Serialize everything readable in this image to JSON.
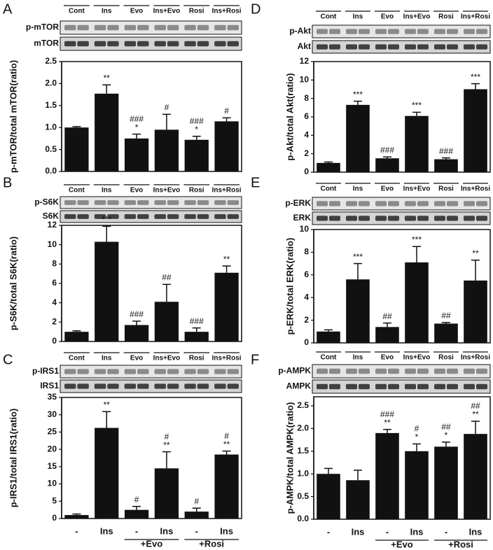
{
  "chart_data": [
    {
      "type": "bar",
      "panel": "A",
      "lanes": [
        "Cont",
        "Ins",
        "Evo",
        "Ins+Evo",
        "Rosi",
        "Ins+Rosi"
      ],
      "blots": [
        "p-mTOR",
        "mTOR"
      ],
      "ylabel": "p-mTOR/total mTOR(ratio)",
      "ylim": [
        0,
        2.5
      ],
      "yticks": [
        {
          "value": 0,
          "label": "0.0"
        },
        0.5,
        {
          "value": 1,
          "label": "1.0"
        },
        1.5,
        {
          "value": 2,
          "label": "2.0"
        },
        2.5
      ],
      "values": [
        1.0,
        1.77,
        0.75,
        0.95,
        0.72,
        1.14
      ],
      "errors": [
        0.02,
        0.2,
        0.1,
        0.35,
        0.08,
        0.08
      ],
      "annotations": [
        [],
        [
          "**"
        ],
        [
          "###",
          "*"
        ],
        [
          "#"
        ],
        [
          "###",
          "*"
        ],
        [
          "#"
        ]
      ],
      "color": "#111111"
    },
    {
      "type": "bar",
      "panel": "B",
      "lanes": [
        "Cont",
        "Ins",
        "Evo",
        "Ins+Evo",
        "Rosi",
        "Ins+Rosi"
      ],
      "blots": [
        "p-S6K",
        "S6K"
      ],
      "ylabel": "p-S6K/total S6K(ratio)",
      "ylim": [
        0,
        12
      ],
      "yticks": [
        0,
        2,
        4,
        6,
        8,
        10,
        12
      ],
      "values": [
        1.0,
        10.3,
        1.7,
        4.1,
        1.0,
        7.1
      ],
      "errors": [
        0.1,
        1.6,
        0.4,
        1.8,
        0.4,
        0.7
      ],
      "annotations": [
        [],
        [
          "***"
        ],
        [
          "###"
        ],
        [
          "##"
        ],
        [
          "###"
        ],
        [
          "**"
        ]
      ],
      "color": "#111111"
    },
    {
      "type": "bar",
      "panel": "C",
      "lanes": [
        "Cont",
        "Ins",
        "Evo",
        "Ins+Evo",
        "Rosi",
        "Ins+Rosi"
      ],
      "blots": [
        "p-IRS1",
        "IRS1"
      ],
      "ylabel": "p-IRS1/total IRS1(ratio)",
      "ylim": [
        0,
        35
      ],
      "yticks": [
        0,
        5,
        10,
        15,
        20,
        25,
        30,
        35
      ],
      "values": [
        1.0,
        26.2,
        2.5,
        14.5,
        2.0,
        18.5
      ],
      "errors": [
        0.3,
        4.7,
        1.0,
        4.8,
        1.0,
        1.0
      ],
      "annotations": [
        [],
        [
          "**"
        ],
        [
          "#"
        ],
        [
          "#",
          "**"
        ],
        [
          "#"
        ],
        [
          "#",
          "**"
        ]
      ],
      "color": "#111111",
      "categories": [
        "-",
        "Ins",
        "-",
        "Ins",
        "-",
        "Ins"
      ],
      "groups": [
        "+Evo",
        "+Rosi"
      ]
    },
    {
      "type": "bar",
      "panel": "D",
      "lanes": [
        "Cont",
        "Ins",
        "Evo",
        "Ins+Evo",
        "Rosi",
        "Ins+Rosi"
      ],
      "blots": [
        "p-Akt",
        "Akt"
      ],
      "ylabel": "p-Akt/total Akt(ratio)",
      "ylim": [
        0,
        12
      ],
      "yticks": [
        0,
        2,
        4,
        6,
        8,
        10,
        12
      ],
      "values": [
        1.0,
        7.3,
        1.5,
        6.1,
        1.4,
        9.0
      ],
      "errors": [
        0.1,
        0.4,
        0.15,
        0.4,
        0.15,
        0.6
      ],
      "annotations": [
        [],
        [
          "***"
        ],
        [
          "###"
        ],
        [
          "***"
        ],
        [
          "###"
        ],
        [
          "***"
        ]
      ],
      "color": "#111111"
    },
    {
      "type": "bar",
      "panel": "E",
      "lanes": [
        "Cont",
        "Ins",
        "Evo",
        "Ins+Evo",
        "Rosi",
        "Ins+Rosi"
      ],
      "blots": [
        "p-ERK",
        "ERK"
      ],
      "ylabel": "p-ERK/total ERK(ratio)",
      "ylim": [
        0,
        10
      ],
      "yticks": [
        0,
        2,
        4,
        6,
        8,
        10
      ],
      "values": [
        1.0,
        5.6,
        1.4,
        7.1,
        1.7,
        5.5
      ],
      "errors": [
        0.15,
        1.4,
        0.35,
        1.4,
        0.1,
        1.8
      ],
      "annotations": [
        [],
        [
          "***"
        ],
        [
          "##"
        ],
        [
          "***"
        ],
        [
          "##"
        ],
        [
          "**"
        ]
      ],
      "color": "#111111"
    },
    {
      "type": "bar",
      "panel": "F",
      "lanes": [
        "Cont",
        "Ins",
        "Evo",
        "Ins+Evo",
        "Rosi",
        "Ins+Rosi"
      ],
      "blots": [
        "p-AMPK",
        "AMPK"
      ],
      "ylabel": "p-AMPK/total AMPK(ratio)",
      "ylim": [
        0,
        2.7
      ],
      "yticks": [
        {
          "value": 0,
          "label": "0.0"
        },
        0.5,
        {
          "value": 1,
          "label": "1.0"
        },
        1.5,
        {
          "value": 2,
          "label": "2.0"
        },
        2.5
      ],
      "values": [
        1.0,
        0.86,
        1.9,
        1.5,
        1.6,
        1.88
      ],
      "errors": [
        0.12,
        0.22,
        0.08,
        0.16,
        0.1,
        0.28
      ],
      "annotations": [
        [],
        [],
        [
          "###",
          "**"
        ],
        [
          "#",
          "*"
        ],
        [
          "##",
          "*"
        ],
        [
          "##",
          "**"
        ]
      ],
      "color": "#111111",
      "categories": [
        "-",
        "Ins",
        "-",
        "Ins",
        "-",
        "Ins"
      ],
      "groups": [
        "+Evo",
        "+Rosi"
      ]
    }
  ]
}
